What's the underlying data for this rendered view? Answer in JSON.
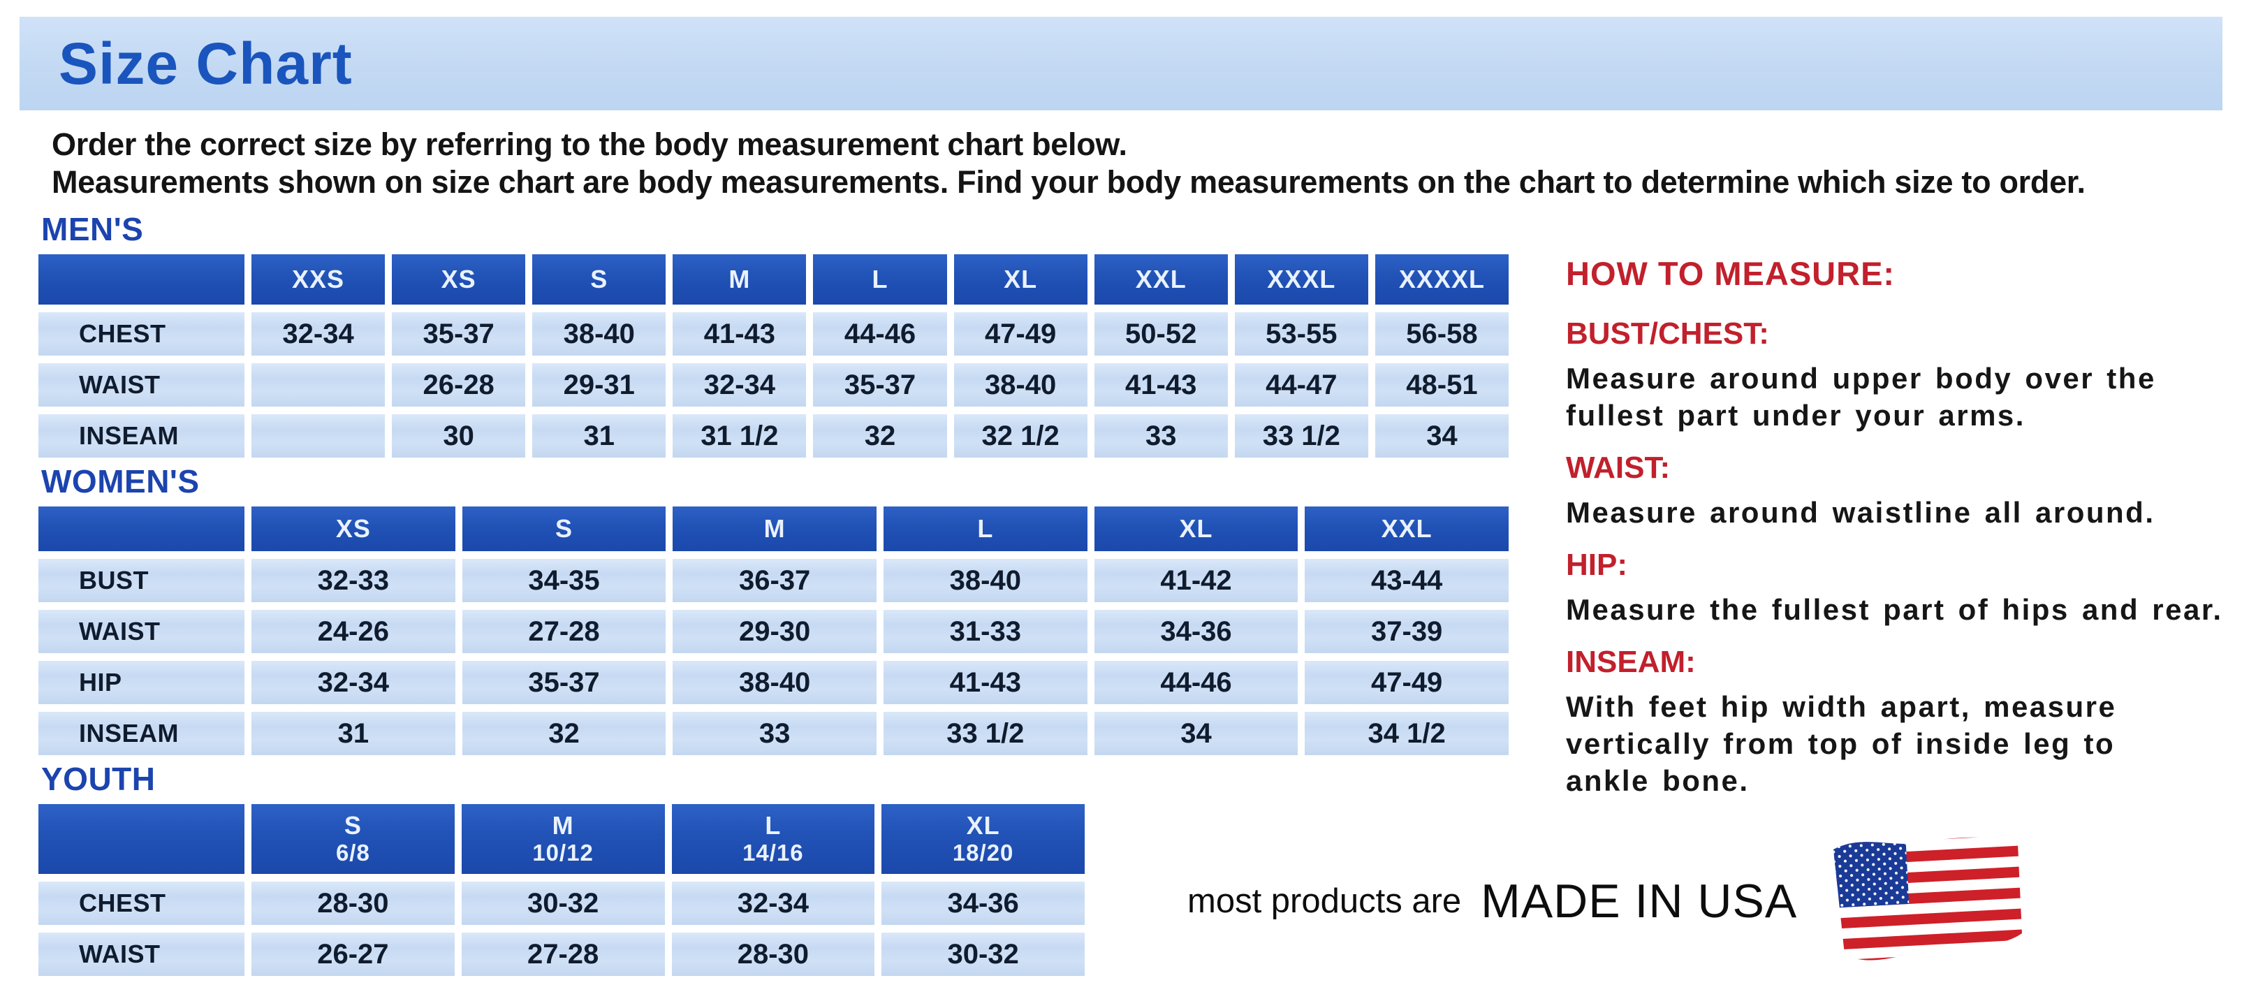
{
  "page": {
    "title": "Size Chart",
    "intro": "Order the correct size by referring to the body measurement chart below.\nMeasurements shown on size chart are body measurements.  Find your body measurements on the chart to determine which size to order."
  },
  "tables": {
    "mens": {
      "heading": "MEN'S",
      "columns": [
        "XXS",
        "XS",
        "S",
        "M",
        "L",
        "XL",
        "XXL",
        "XXXL",
        "XXXXL"
      ],
      "rows": [
        {
          "label": "CHEST",
          "values": [
            "32-34",
            "35-37",
            "38-40",
            "41-43",
            "44-46",
            "47-49",
            "50-52",
            "53-55",
            "56-58"
          ]
        },
        {
          "label": "WAIST",
          "values": [
            "",
            "26-28",
            "29-31",
            "32-34",
            "35-37",
            "38-40",
            "41-43",
            "44-47",
            "48-51"
          ]
        },
        {
          "label": "INSEAM",
          "values": [
            "",
            "30",
            "31",
            "31 1/2",
            "32",
            "32 1/2",
            "33",
            "33 1/2",
            "34"
          ]
        }
      ]
    },
    "womens": {
      "heading": "WOMEN'S",
      "columns": [
        "XS",
        "S",
        "M",
        "L",
        "XL",
        "XXL"
      ],
      "rows": [
        {
          "label": "BUST",
          "values": [
            "32-33",
            "34-35",
            "36-37",
            "38-40",
            "41-42",
            "43-44"
          ]
        },
        {
          "label": "WAIST",
          "values": [
            "24-26",
            "27-28",
            "29-30",
            "31-33",
            "34-36",
            "37-39"
          ]
        },
        {
          "label": "HIP",
          "values": [
            "32-34",
            "35-37",
            "38-40",
            "41-43",
            "44-46",
            "47-49"
          ]
        },
        {
          "label": "INSEAM",
          "values": [
            "31",
            "32",
            "33",
            "33 1/2",
            "34",
            "34 1/2"
          ]
        }
      ]
    },
    "youth": {
      "heading": "YOUTH",
      "columns": [
        {
          "size": "S",
          "range": "6/8"
        },
        {
          "size": "M",
          "range": "10/12"
        },
        {
          "size": "L",
          "range": "14/16"
        },
        {
          "size": "XL",
          "range": "18/20"
        }
      ],
      "rows": [
        {
          "label": "CHEST",
          "values": [
            "28-30",
            "30-32",
            "32-34",
            "34-36"
          ]
        },
        {
          "label": "WAIST",
          "values": [
            "26-27",
            "27-28",
            "28-30",
            "30-32"
          ]
        }
      ]
    }
  },
  "how_to_measure": {
    "heading": "HOW TO MEASURE:",
    "items": [
      {
        "label": "BUST/CHEST:",
        "text": "Measure around upper body over the\nfullest part under your arms."
      },
      {
        "label": "WAIST:",
        "text": "Measure around waistline all around."
      },
      {
        "label": "HIP:",
        "text": "Measure the fullest part of hips and rear."
      },
      {
        "label": "INSEAM:",
        "text": "With feet hip width apart, measure\nvertically from top of inside leg to\nankle bone."
      }
    ]
  },
  "footer": {
    "prefix": "most products are",
    "emphasis": "MADE IN USA",
    "flag_icon": "us-flag"
  },
  "colors": {
    "banner_blue": "#c3d9f3",
    "title_blue": "#1a55be",
    "section_heading_blue": "#1c44ae",
    "table_header_blue": "#2152b6",
    "table_cell_blue": "#c7daf2",
    "measure_red": "#c1202c",
    "text_black": "#141414",
    "flag_red": "#ce2029",
    "flag_canton_blue": "#1a3a97"
  }
}
